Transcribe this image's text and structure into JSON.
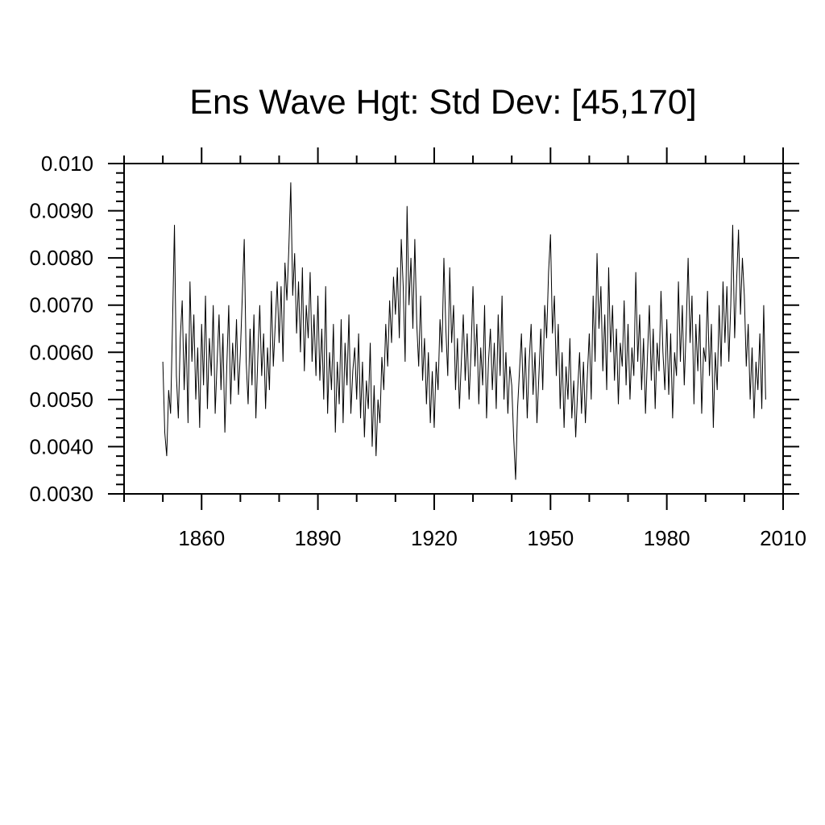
{
  "page": {
    "background": "#ffffff"
  },
  "chart_data": {
    "type": "line",
    "title": "Ens Wave Hgt: Std Dev: [45,170]",
    "xlabel": "",
    "ylabel": "",
    "xlim": [
      1840,
      2010
    ],
    "ylim": [
      0.003,
      0.01
    ],
    "grid": false,
    "legend": null,
    "axis_color": "#000000",
    "line_color": "#000000",
    "x_major_ticks": [
      1860,
      1890,
      1920,
      1950,
      1980,
      2010
    ],
    "x_major_labels": [
      "1860",
      "1890",
      "1920",
      "1950",
      "1980",
      "2010"
    ],
    "x_minor_step": 10,
    "y_major_ticks": [
      0.01,
      0.009,
      0.008,
      0.007,
      0.006,
      0.005,
      0.004,
      0.003
    ],
    "y_major_labels": [
      "0.010",
      "0.0090",
      "0.0080",
      "0.0070",
      "0.0060",
      "0.0050",
      "0.0040",
      "0.0030"
    ],
    "y_minor_step": 0.0002,
    "series": [
      {
        "x_start": 1850.0,
        "x_step": 0.5,
        "value_scale": 0.0001,
        "values": [
          58,
          43,
          38,
          52,
          47,
          66,
          87,
          55,
          46,
          63,
          71,
          52,
          64,
          45,
          75,
          58,
          68,
          50,
          61,
          44,
          66,
          53,
          72,
          48,
          63,
          55,
          70,
          47,
          58,
          68,
          52,
          64,
          43,
          57,
          70,
          49,
          62,
          54,
          67,
          51,
          60,
          72,
          84,
          58,
          49,
          65,
          53,
          68,
          46,
          59,
          70,
          55,
          64,
          48,
          61,
          52,
          73,
          57,
          66,
          75,
          62,
          74,
          58,
          79,
          71,
          82,
          96,
          72,
          81,
          64,
          75,
          60,
          78,
          56,
          70,
          63,
          77,
          58,
          68,
          55,
          72,
          54,
          65,
          50,
          74,
          47,
          60,
          52,
          66,
          43,
          58,
          49,
          67,
          45,
          62,
          53,
          68,
          47,
          56,
          61,
          50,
          64,
          46,
          58,
          42,
          54,
          48,
          62,
          40,
          53,
          38,
          50,
          45,
          59,
          52,
          66,
          57,
          71,
          62,
          76,
          68,
          78,
          63,
          84,
          74,
          58,
          91,
          70,
          80,
          65,
          84,
          66,
          57,
          72,
          54,
          63,
          49,
          60,
          45,
          56,
          44,
          58,
          52,
          67,
          60,
          80,
          65,
          55,
          78,
          62,
          70,
          52,
          63,
          48,
          58,
          68,
          54,
          64,
          50,
          60,
          74,
          57,
          66,
          49,
          61,
          53,
          70,
          46,
          58,
          65,
          52,
          62,
          48,
          68,
          55,
          72,
          50,
          60,
          47,
          57,
          53,
          42,
          33,
          48,
          56,
          64,
          50,
          61,
          46,
          58,
          66,
          51,
          60,
          45,
          55,
          65,
          52,
          70,
          63,
          77,
          85,
          64,
          72,
          55,
          66,
          48,
          60,
          44,
          57,
          50,
          63,
          46,
          54,
          42,
          52,
          60,
          47,
          58,
          45,
          55,
          64,
          50,
          72,
          58,
          81,
          65,
          74,
          56,
          68,
          52,
          78,
          60,
          70,
          54,
          65,
          49,
          62,
          57,
          71,
          53,
          66,
          50,
          61,
          55,
          77,
          58,
          68,
          52,
          63,
          47,
          59,
          70,
          54,
          65,
          48,
          62,
          56,
          73,
          60,
          52,
          67,
          51,
          64,
          46,
          60,
          55,
          75,
          58,
          70,
          53,
          65,
          80,
          62,
          72,
          49,
          66,
          56,
          68,
          47,
          61,
          58,
          73,
          55,
          66,
          44,
          60,
          52,
          70,
          57,
          75,
          62,
          74,
          58,
          70,
          87,
          63,
          75,
          86,
          68,
          80,
          72,
          57,
          66,
          50,
          61,
          46,
          58,
          52,
          64,
          48,
          70,
          50
        ]
      }
    ]
  }
}
